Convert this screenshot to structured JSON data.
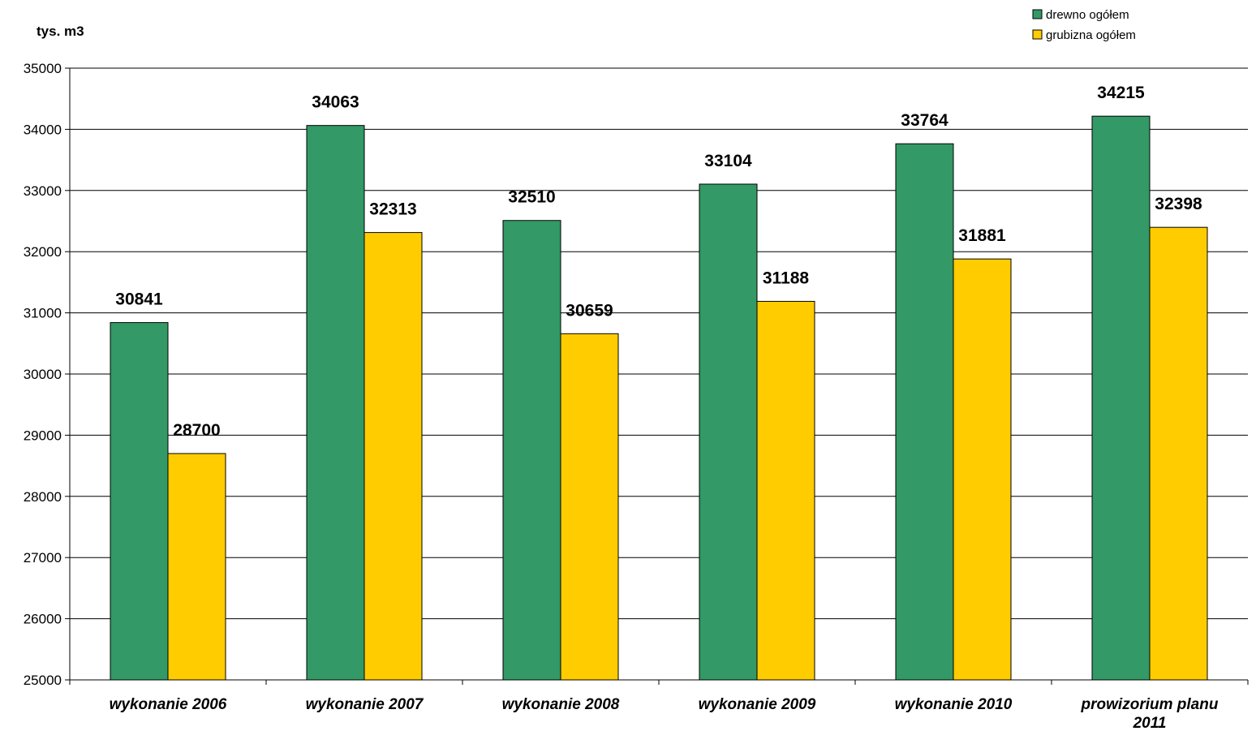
{
  "chart_data": {
    "type": "bar",
    "ylabel": "tys. m3",
    "ylim": [
      25000,
      35000
    ],
    "ytick_step": 1000,
    "grid": true,
    "legend_position": "top-right",
    "categories": [
      [
        "wykonanie 2006"
      ],
      [
        "wykonanie 2007"
      ],
      [
        "wykonanie 2008"
      ],
      [
        "wykonanie 2009"
      ],
      [
        "wykonanie 2010"
      ],
      [
        "prowizorium planu",
        "2011"
      ]
    ],
    "series": [
      {
        "name": "drewno ogółem",
        "color": "#339966",
        "values": [
          30841,
          34063,
          32510,
          33104,
          33764,
          34215
        ]
      },
      {
        "name": "grubizna ogółem",
        "color": "#FFCC00",
        "values": [
          28700,
          32313,
          30659,
          31188,
          31881,
          32398
        ]
      }
    ]
  }
}
